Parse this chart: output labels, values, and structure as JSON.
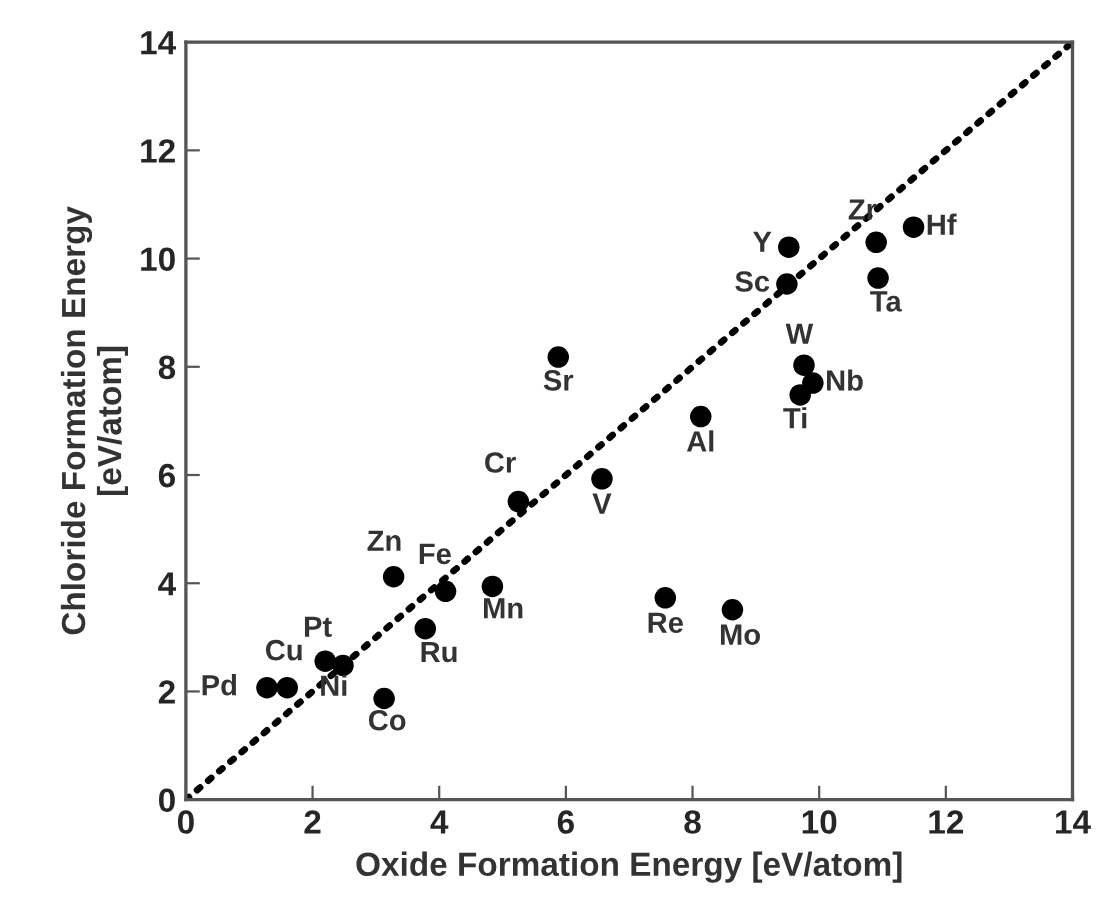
{
  "chart_data": {
    "type": "scatter",
    "xlabel": "Oxide Formation Energy [eV/atom]",
    "ylabel": "Chloride Formation Energy\n[eV/atom]",
    "xlim": [
      0,
      14
    ],
    "ylim": [
      0,
      14
    ],
    "xticks": [
      0,
      2,
      4,
      6,
      8,
      10,
      12,
      14
    ],
    "yticks": [
      0,
      2,
      4,
      6,
      8,
      10,
      12,
      14
    ],
    "grid": false,
    "marker": "circle",
    "series": [
      {
        "color": "#000000",
        "x": [
          1.28,
          1.6,
          2.2,
          2.48,
          3.13,
          3.28,
          4.1,
          3.78,
          4.84,
          5.88,
          5.25,
          6.57,
          8.13,
          7.57,
          8.63,
          9.52,
          9.49,
          10.9,
          11.49,
          10.93,
          9.76,
          9.9,
          9.7
        ],
        "values": [
          2.07,
          2.07,
          2.56,
          2.48,
          1.87,
          4.12,
          3.85,
          3.16,
          3.94,
          8.18,
          5.51,
          5.93,
          7.08,
          3.73,
          3.51,
          10.21,
          9.53,
          10.3,
          10.58,
          9.64,
          8.03,
          7.7,
          7.48
        ]
      },
      {
        "type": "line",
        "color": "#000000",
        "line_style": "dotted",
        "marker": "none",
        "x": [
          0,
          14
        ],
        "values": [
          0,
          14
        ]
      }
    ],
    "annotations": [
      {
        "text": "Pd",
        "x": 1.28,
        "y": 2.07
      },
      {
        "text": "Cu",
        "x": 1.6,
        "y": 2.07
      },
      {
        "text": "Pt",
        "x": 2.2,
        "y": 2.56
      },
      {
        "text": "Ni",
        "x": 2.48,
        "y": 2.48
      },
      {
        "text": "Co",
        "x": 3.13,
        "y": 1.87
      },
      {
        "text": "Zn",
        "x": 3.28,
        "y": 4.12
      },
      {
        "text": "Fe",
        "x": 4.1,
        "y": 3.85
      },
      {
        "text": "Ru",
        "x": 3.78,
        "y": 3.16
      },
      {
        "text": "Mn",
        "x": 4.84,
        "y": 3.94
      },
      {
        "text": "Sr",
        "x": 5.88,
        "y": 8.18
      },
      {
        "text": "Cr",
        "x": 5.25,
        "y": 5.51
      },
      {
        "text": "V",
        "x": 6.57,
        "y": 5.93
      },
      {
        "text": "Al",
        "x": 8.13,
        "y": 7.08
      },
      {
        "text": "Re",
        "x": 7.57,
        "y": 3.73
      },
      {
        "text": "Mo",
        "x": 8.63,
        "y": 3.51
      },
      {
        "text": "Y",
        "x": 9.52,
        "y": 10.21
      },
      {
        "text": "Sc",
        "x": 9.49,
        "y": 9.53
      },
      {
        "text": "Zr",
        "x": 10.9,
        "y": 10.3
      },
      {
        "text": "Hf",
        "x": 11.49,
        "y": 10.58
      },
      {
        "text": "Ta",
        "x": 10.93,
        "y": 9.64
      },
      {
        "text": "W",
        "x": 9.76,
        "y": 8.03
      },
      {
        "text": "Nb",
        "x": 9.9,
        "y": 7.7
      },
      {
        "text": "Ti",
        "x": 9.7,
        "y": 7.48
      }
    ]
  }
}
